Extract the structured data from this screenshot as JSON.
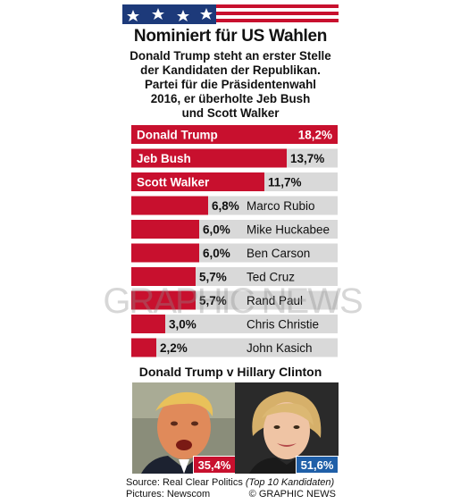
{
  "header": {
    "title": "Nominiert für US Wahlen",
    "subtitle_lines": [
      "Donald Trump steht an erster Stelle",
      "der Kandidaten der Republikan.",
      "Partei für die Präsidentenwahl",
      "2016, er überholte Jeb Bush",
      "und Scott Walker"
    ]
  },
  "colors": {
    "bar": "#c8102e",
    "track": "#d9d9d9",
    "trump": "#c8102e",
    "clinton": "#1f5fa8"
  },
  "chart_data": {
    "type": "bar",
    "orientation": "horizontal",
    "title": "Nominiert für US Wahlen",
    "categories": [
      "Donald Trump",
      "Jeb Bush",
      "Scott Walker",
      "Marco Rubio",
      "Mike Huckabee",
      "Ben Carson",
      "Ted Cruz",
      "Rand Paul",
      "Chris Christie",
      "John Kasich"
    ],
    "values": [
      18.2,
      13.7,
      11.7,
      6.8,
      6.0,
      6.0,
      5.7,
      5.7,
      3.0,
      2.2
    ],
    "value_labels": [
      "18,2%",
      "13,7%",
      "11,7%",
      "6,8%",
      "6,0%",
      "6,0%",
      "5,7%",
      "5,7%",
      "3,0%",
      "2,2%"
    ],
    "xlim": [
      0,
      18.2
    ],
    "grid": false,
    "legend": "none"
  },
  "matchup": {
    "title": "Donald Trump v Hillary Clinton",
    "trump_value": "35,4%",
    "clinton_value": "51,6%"
  },
  "footer": {
    "source_prefix": "Source: Real Clear Politics ",
    "source_note": "(Top 10 Kandidaten)",
    "pictures": "Pictures: Newscom",
    "copyright": "© GRAPHIC NEWS"
  },
  "watermark": "GRAPHIC NEWS"
}
